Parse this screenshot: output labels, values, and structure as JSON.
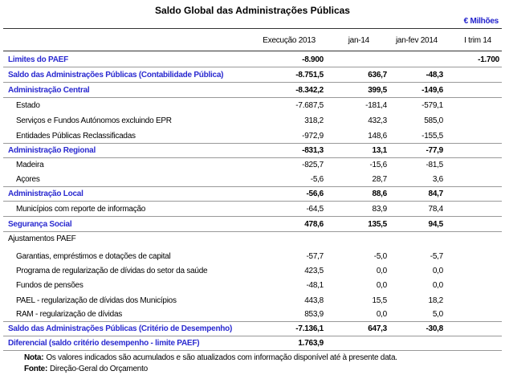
{
  "header": {
    "title": "Saldo Global das Administrações Públicas",
    "unit": "€ Milhões"
  },
  "table": {
    "columns": [
      "Execução 2013",
      "jan-14",
      "jan-fev 2014",
      "I trim 14"
    ],
    "rows": [
      {
        "label": "Limites do PAEF",
        "style": "section",
        "values": [
          "-8.900",
          null,
          null,
          "-1.700"
        ]
      },
      {
        "label": "Saldo das Administrações Públicas (Contabilidade Pública)",
        "style": "section",
        "values": [
          "-8.751,5",
          "636,7",
          "-48,3",
          null
        ]
      },
      {
        "label": "Administração Central",
        "style": "section",
        "values": [
          "-8.342,2",
          "399,5",
          "-149,6",
          null
        ]
      },
      {
        "label": "Estado",
        "style": "item",
        "values": [
          "-7.687,5",
          "-181,4",
          "-579,1",
          null
        ]
      },
      {
        "label": "Serviços e Fundos Autónomos excluindo EPR",
        "style": "item",
        "values": [
          "318,2",
          "432,3",
          "585,0",
          null
        ]
      },
      {
        "label": "Entidades Públicas Reclassificadas",
        "style": "item",
        "values": [
          "-972,9",
          "148,6",
          "-155,5",
          null
        ]
      },
      {
        "label": "Administração Regional",
        "style": "section",
        "values": [
          "-831,3",
          "13,1",
          "-77,9",
          null
        ]
      },
      {
        "label": "Madeira",
        "style": "item",
        "values": [
          "-825,7",
          "-15,6",
          "-81,5",
          null
        ]
      },
      {
        "label": "Açores",
        "style": "item",
        "values": [
          "-5,6",
          "28,7",
          "3,6",
          null
        ]
      },
      {
        "label": "Administração Local",
        "style": "section",
        "values": [
          "-56,6",
          "88,6",
          "84,7",
          null
        ]
      },
      {
        "label": "Municípios com reporte de informação",
        "style": "item",
        "values": [
          "-64,5",
          "83,9",
          "78,4",
          null
        ]
      },
      {
        "label": "Segurança Social",
        "style": "section",
        "values": [
          "478,6",
          "135,5",
          "94,5",
          null
        ]
      },
      {
        "label": "Ajustamentos PAEF",
        "style": "group",
        "values": [
          null,
          null,
          null,
          null
        ]
      },
      {
        "label": "Garantias,  empréstimos e dotações de capital",
        "style": "item",
        "values": [
          "-57,7",
          "-5,0",
          "-5,7",
          null
        ]
      },
      {
        "label": "Programa de regularização de dívidas do setor da saúde",
        "style": "item",
        "values": [
          "423,5",
          "0,0",
          "0,0",
          null
        ]
      },
      {
        "label": "Fundos de pensões",
        "style": "item",
        "values": [
          "-48,1",
          "0,0",
          "0,0",
          null
        ]
      },
      {
        "label": "PAEL - regularização de dívidas dos Municípios",
        "style": "item",
        "values": [
          "443,8",
          "15,5",
          "18,2",
          null
        ]
      },
      {
        "label": "RAM - regularização de dívidas",
        "style": "item",
        "values": [
          "853,9",
          "0,0",
          "5,0",
          null
        ]
      },
      {
        "label": "Saldo das Administrações Públicas (Critério de Desempenho)",
        "style": "section",
        "values": [
          "-7.136,1",
          "647,3",
          "-30,8",
          null
        ]
      },
      {
        "label": "Diferencial (saldo critério desempenho - limite PAEF)",
        "style": "section",
        "values": [
          "1.763,9",
          null,
          null,
          null
        ]
      }
    ]
  },
  "notes": [
    {
      "label": "Nota:",
      "text": "Os valores indicados são acumulados e são atualizados com informação disponível até à presente data."
    },
    {
      "label": "Fonte:",
      "text": "Direção-Geral do Orçamento"
    }
  ]
}
